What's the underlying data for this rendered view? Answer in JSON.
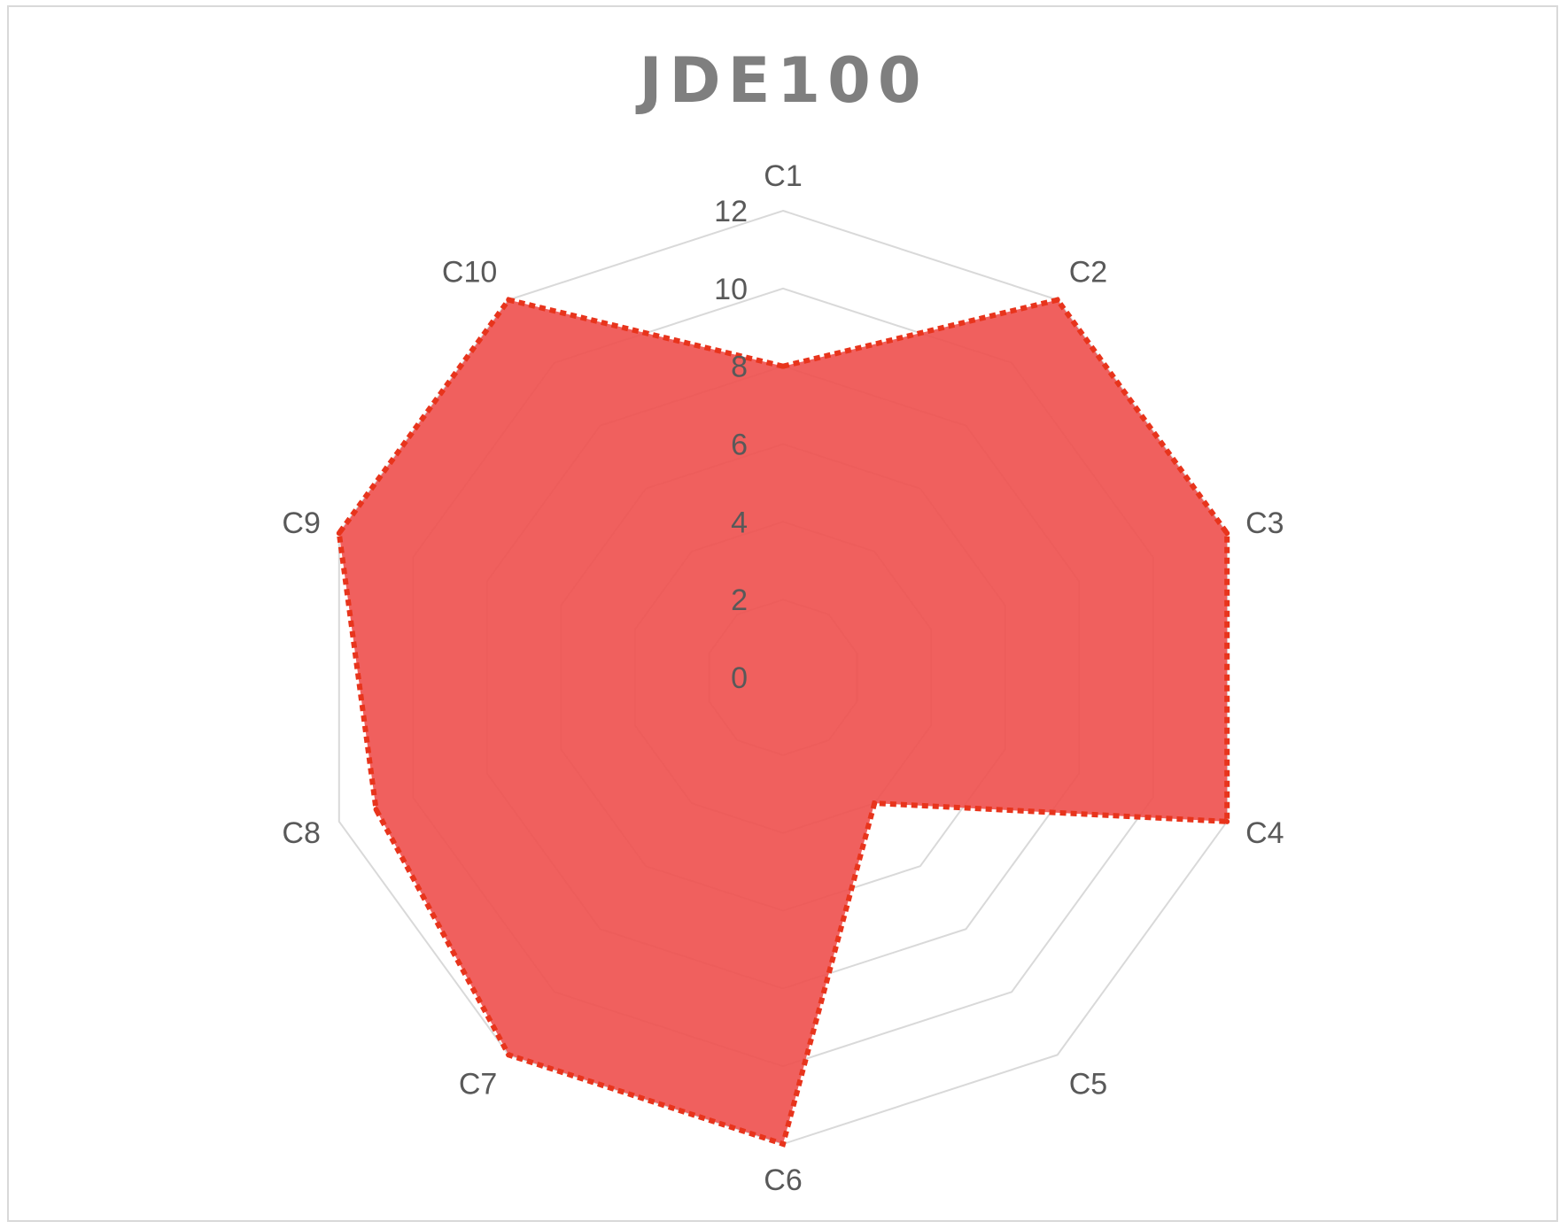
{
  "chart_data": {
    "type": "radar",
    "title": "JDE100",
    "categories": [
      "C1",
      "C2",
      "C3",
      "C4",
      "C5",
      "C6",
      "C7",
      "C8",
      "C9",
      "C10"
    ],
    "series": [
      {
        "values": [
          8,
          12,
          12,
          12,
          4,
          12,
          12,
          11,
          12,
          12
        ]
      }
    ],
    "radial_axis": {
      "min": 0,
      "max": 12,
      "ticks": [
        0,
        2,
        4,
        6,
        8,
        10,
        12
      ]
    },
    "grid": true,
    "legend": "none",
    "colors": {
      "fill": "#ef5350",
      "outline": "#e8341c",
      "grid": "#d9d9d9",
      "text": "#595959",
      "title": "#7f7f7f"
    }
  }
}
